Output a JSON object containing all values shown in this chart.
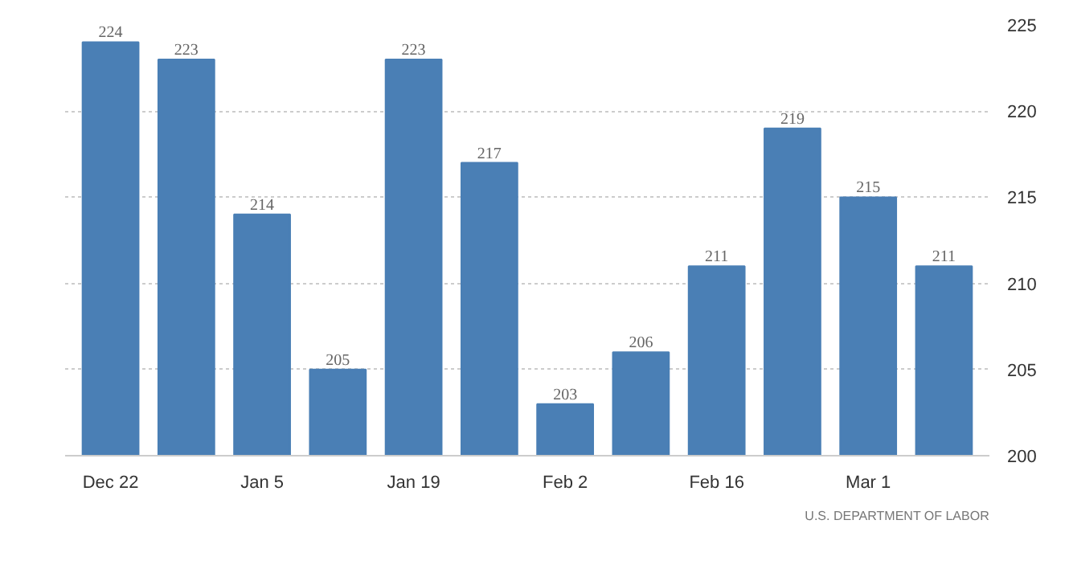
{
  "chart_data": {
    "type": "bar",
    "categories": [
      "Dec 22",
      null,
      "Jan 5",
      null,
      "Jan 19",
      null,
      "Feb 2",
      null,
      "Feb 16",
      null,
      "Mar 1",
      null
    ],
    "values": [
      224,
      223,
      214,
      205,
      223,
      217,
      203,
      206,
      211,
      219,
      215,
      211
    ],
    "color": "#4a7fb5",
    "data_labels": true,
    "ylim": [
      200,
      225
    ],
    "yticks": [
      200,
      205,
      210,
      215,
      220,
      225
    ],
    "grid": "y",
    "annotations": [
      "U.S. DEPARTMENT OF LABOR"
    ]
  }
}
